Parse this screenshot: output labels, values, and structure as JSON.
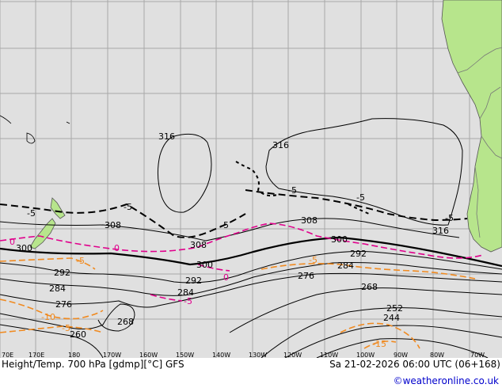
{
  "title_left": "Height/Temp. 700 hPa [gdmp][°C] GFS",
  "title_right": "Sa 21-02-2026 06:00 UTC (06+168)",
  "credit": "©weatheronline.co.uk",
  "colors": {
    "ocean": "#e0e0e0",
    "land": "#b7e58c",
    "grid": "#a8a8a8",
    "height_contour": "#000000",
    "temp_zero": "#e0008c",
    "temp_negative": "#f08a20",
    "temp_minus5": "#000000",
    "credit": "#0000cc"
  },
  "lon_ticks": [
    "70E",
    "170E",
    "180",
    "170W",
    "160W",
    "150W",
    "140W",
    "130W",
    "120W",
    "110W",
    "100W",
    "90W",
    "80W",
    "70W"
  ],
  "height_labels": [
    "316",
    "316",
    "308",
    "308",
    "308",
    "300",
    "300",
    "300",
    "292",
    "292",
    "284",
    "284",
    "276",
    "276",
    "268",
    "268",
    "260",
    "252",
    "244"
  ],
  "temp_labels": [
    "-5",
    "-5",
    "5",
    "5",
    "5",
    "5",
    "-5",
    "-10",
    "-5",
    "0",
    "0",
    "0",
    "-15",
    "-10",
    "-15"
  ]
}
